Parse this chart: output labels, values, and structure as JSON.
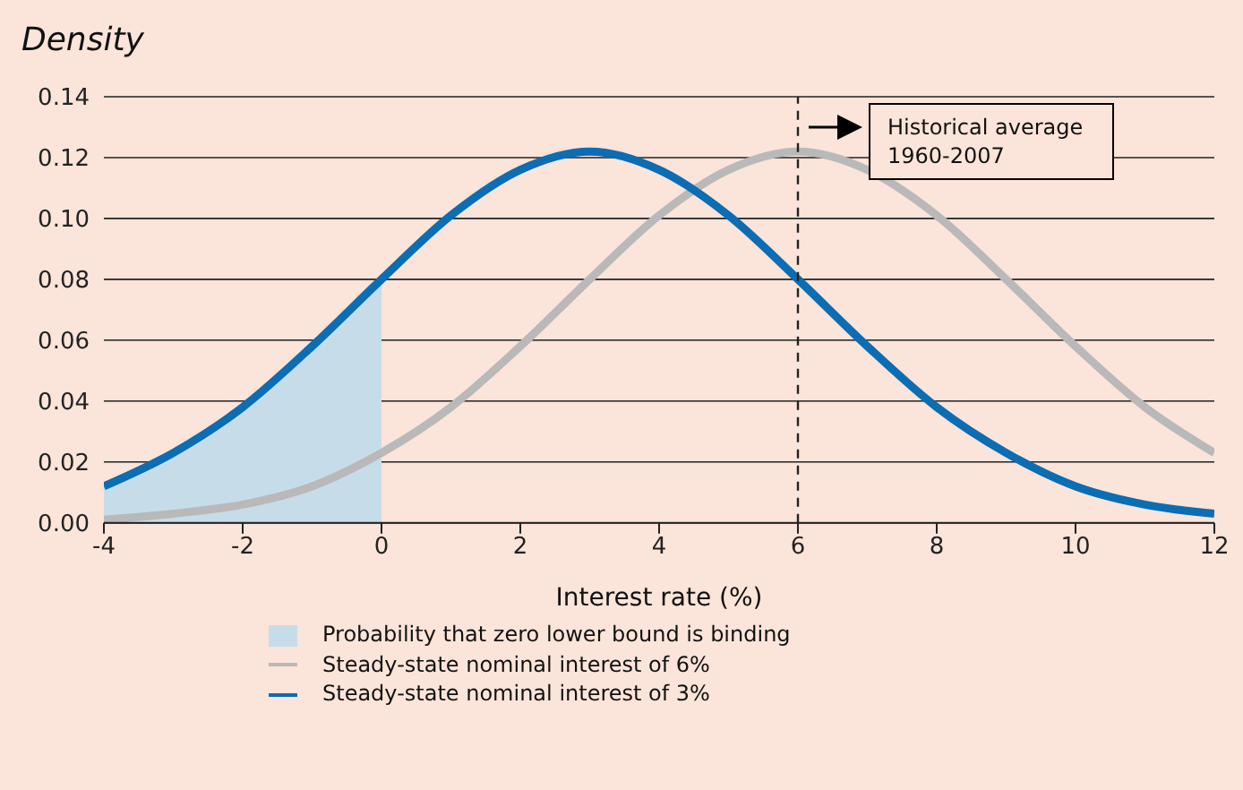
{
  "chart_data": {
    "type": "line",
    "ylabel": "Density",
    "xlabel": "Interest rate (%)",
    "x": [
      -4,
      -3,
      -2,
      -1,
      0,
      1,
      2,
      3,
      4,
      5,
      6,
      7,
      8,
      9,
      10,
      11,
      12
    ],
    "series": [
      {
        "name": "Probability that zero lower bound is binding",
        "type": "area",
        "color": "#c6dde9",
        "x": [
          -4,
          -3,
          -2,
          -1,
          0
        ],
        "values": [
          0.012,
          0.023,
          0.038,
          0.058,
          0.08
        ]
      },
      {
        "name": "Steady-state nominal interest of 6%",
        "color": "#b9b9b9",
        "values": [
          0.001,
          0.003,
          0.006,
          0.012,
          0.023,
          0.038,
          0.058,
          0.08,
          0.101,
          0.116,
          0.122,
          0.116,
          0.101,
          0.08,
          0.058,
          0.038,
          0.023
        ]
      },
      {
        "name": "Steady-state nominal interest of 3%",
        "color": "#0b6db3",
        "values": [
          0.012,
          0.023,
          0.038,
          0.058,
          0.08,
          0.101,
          0.116,
          0.122,
          0.116,
          0.101,
          0.08,
          0.058,
          0.038,
          0.023,
          0.012,
          0.006,
          0.003
        ]
      }
    ],
    "xlim": [
      -4,
      12
    ],
    "xticks": [
      -4,
      -2,
      0,
      2,
      4,
      6,
      8,
      10,
      12
    ],
    "ylim": [
      0,
      0.14
    ],
    "yticks": [
      {
        "value": 0,
        "label": "0.00"
      },
      {
        "value": 0.02,
        "label": "0.02"
      },
      {
        "value": 0.04,
        "label": "0.04"
      },
      {
        "value": 0.06,
        "label": "0.06"
      },
      {
        "value": 0.08,
        "label": "0.08"
      },
      {
        "value": 0.1,
        "label": "0.10"
      },
      {
        "value": 0.12,
        "label": "0.12"
      },
      {
        "value": 0.14,
        "label": "0.14"
      }
    ],
    "ref_lines": [
      {
        "axis": "x",
        "value": 6,
        "line_style": "dashed",
        "color": "#222222"
      }
    ],
    "annotations": [
      "Historical average 1960-2007"
    ],
    "grid": "y",
    "legend": "bottom",
    "marker": "none"
  }
}
